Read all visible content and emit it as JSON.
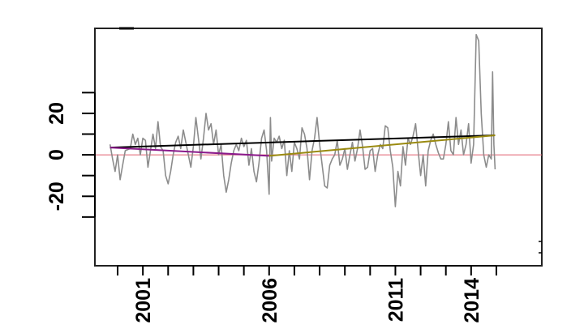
{
  "chart_data": {
    "type": "line",
    "title": "",
    "xlabel": "",
    "ylabel": "",
    "xlim": [
      1999.1,
      2016.8
    ],
    "ylim": [
      -53.5,
      61
    ],
    "grid": false,
    "x_ticks": [
      2000,
      2001,
      2002,
      2003,
      2004,
      2005,
      2006,
      2007,
      2008,
      2009,
      2010,
      2011,
      2012,
      2013,
      2014,
      2015
    ],
    "x_tick_labels": [
      {
        "value": 2001,
        "label": "2001"
      },
      {
        "value": 2006,
        "label": "2006"
      },
      {
        "value": 2011,
        "label": "2011"
      },
      {
        "value": 2014,
        "label": "2014"
      }
    ],
    "y_ticks": [
      30,
      20,
      10,
      0,
      -10,
      -20,
      -30
    ],
    "y_tick_labels": [
      {
        "value": 20,
        "label": "20"
      },
      {
        "value": 0,
        "label": "0"
      },
      {
        "value": -20,
        "label": "-20"
      }
    ],
    "reference_line": {
      "y": 0,
      "color": "#e06070"
    },
    "series": [
      {
        "color": "#8c8c8c",
        "x": [
          1999.7,
          1999.8,
          1999.9,
          2000.0,
          2000.1,
          2000.2,
          2000.3,
          2000.5,
          2000.6,
          2000.7,
          2000.8,
          2000.9,
          2001.0,
          2001.1,
          2001.2,
          2001.3,
          2001.4,
          2001.5,
          2001.6,
          2001.7,
          2001.8,
          2001.9,
          2002.0,
          2002.1,
          2002.2,
          2002.3,
          2002.4,
          2002.5,
          2002.6,
          2002.7,
          2002.8,
          2002.9,
          2003.0,
          2003.1,
          2003.2,
          2003.3,
          2003.4,
          2003.5,
          2003.6,
          2003.7,
          2003.8,
          2003.9,
          2004.0,
          2004.1,
          2004.2,
          2004.3,
          2004.4,
          2004.5,
          2004.6,
          2004.7,
          2004.8,
          2004.9,
          2005.0,
          2005.1,
          2005.2,
          2005.3,
          2005.4,
          2005.5,
          2005.6,
          2005.7,
          2005.8,
          2005.9,
          2006.0,
          2006.05,
          2006.1,
          2006.2,
          2006.3,
          2006.4,
          2006.5,
          2006.6,
          2006.7,
          2006.8,
          2006.9,
          2007.0,
          2007.1,
          2007.2,
          2007.3,
          2007.4,
          2007.5,
          2007.6,
          2007.7,
          2007.8,
          2007.9,
          2008.0,
          2008.1,
          2008.2,
          2008.3,
          2008.4,
          2008.5,
          2008.6,
          2008.7,
          2008.8,
          2008.9,
          2009.0,
          2009.1,
          2009.2,
          2009.3,
          2009.4,
          2009.5,
          2009.6,
          2009.7,
          2009.8,
          2009.9,
          2010.0,
          2010.1,
          2010.2,
          2010.3,
          2010.4,
          2010.5,
          2010.6,
          2010.7,
          2010.8,
          2010.9,
          2011.0,
          2011.1,
          2011.2,
          2011.3,
          2011.4,
          2011.5,
          2011.6,
          2011.7,
          2011.8,
          2011.9,
          2012.0,
          2012.1,
          2012.2,
          2012.3,
          2012.4,
          2012.5,
          2012.6,
          2012.7,
          2012.8,
          2012.9,
          2013.0,
          2013.1,
          2013.2,
          2013.3,
          2013.4,
          2013.5,
          2013.6,
          2013.7,
          2013.8,
          2013.9,
          2014.0,
          2014.1,
          2014.2,
          2014.3,
          2014.4,
          2014.5,
          2014.6,
          2014.7,
          2014.8,
          2014.85,
          2014.9,
          2014.95
        ],
        "y": [
          5,
          -2,
          -8,
          0,
          -12,
          -5,
          2,
          3,
          10,
          5,
          8,
          0,
          8,
          7,
          -6,
          2,
          10,
          3,
          16,
          4,
          2,
          -10,
          -14,
          -8,
          0,
          6,
          9,
          3,
          12,
          6,
          0,
          -6,
          4,
          18,
          8,
          -2,
          8,
          20,
          12,
          15,
          5,
          12,
          0,
          5,
          -10,
          -18,
          -12,
          -4,
          2,
          5,
          2,
          8,
          4,
          7,
          -5,
          3,
          -8,
          -13,
          -4,
          8,
          12,
          2,
          -19,
          18,
          -3,
          8,
          6,
          9,
          3,
          7,
          -10,
          2,
          -8,
          6,
          3,
          -2,
          13,
          10,
          3,
          -12,
          2,
          8,
          18,
          5,
          -5,
          -15,
          -16,
          -5,
          -2,
          0,
          7,
          -5,
          -2,
          3,
          -7,
          0,
          6,
          -3,
          3,
          12,
          4,
          -7,
          -6,
          2,
          3,
          -8,
          0,
          5,
          3,
          14,
          13,
          2,
          -6,
          -25,
          -8,
          -15,
          4,
          -5,
          8,
          5,
          9,
          15,
          2,
          -10,
          0,
          -15,
          2,
          7,
          10,
          5,
          1,
          -2,
          -2,
          5,
          16,
          2,
          0,
          18,
          5,
          12,
          0,
          5,
          15,
          -4,
          5,
          58,
          55,
          20,
          0,
          -6,
          0,
          -2,
          40,
          5,
          -7
        ]
      },
      {
        "color": "#000000",
        "x": [
          1999.7,
          2014.95
        ],
        "y": [
          3.5,
          9.4
        ]
      },
      {
        "color": "#8b1a8b",
        "x": [
          1999.7,
          2006.0
        ],
        "y": [
          3.5,
          -0.5
        ]
      },
      {
        "color": "#9a8a10",
        "x": [
          2006.0,
          2014.95
        ],
        "y": [
          -0.5,
          9.4
        ]
      }
    ]
  }
}
